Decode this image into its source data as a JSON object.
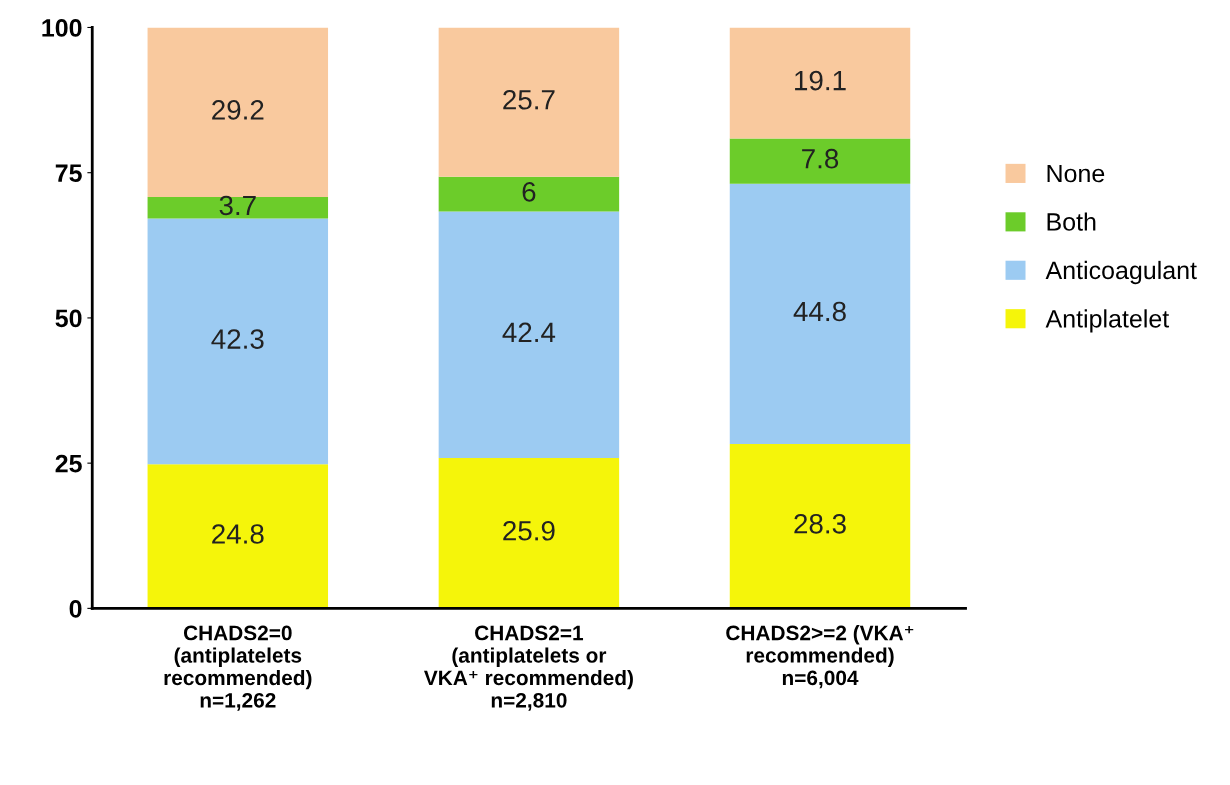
{
  "chart_data": {
    "type": "bar",
    "stacked": true,
    "categories": [
      "CHADS2=0\n(antiplatelets\nrecommended)\nn=1,262",
      "CHADS2=1\n(antiplatelets or\nVKA⁺ recommended)\nn=2,810",
      "CHADS2>=2 (VKA⁺\nrecommended)\nn=6,004"
    ],
    "series": [
      {
        "name": "Antiplatelet",
        "color": "#f5f50a",
        "values": [
          24.8,
          25.9,
          28.3
        ]
      },
      {
        "name": "Anticoagulant",
        "color": "#9ccbf2",
        "values": [
          42.3,
          42.4,
          44.8
        ]
      },
      {
        "name": "Both",
        "color": "#6ccc2a",
        "values": [
          3.7,
          6,
          7.8
        ]
      },
      {
        "name": "None",
        "color": "#f9c99e",
        "values": [
          29.2,
          25.7,
          19.1
        ]
      }
    ],
    "ylim": [
      0,
      100
    ],
    "yticks": [
      0,
      25,
      50,
      75,
      100
    ],
    "data_labels": true,
    "grid": false,
    "legend": "right"
  }
}
